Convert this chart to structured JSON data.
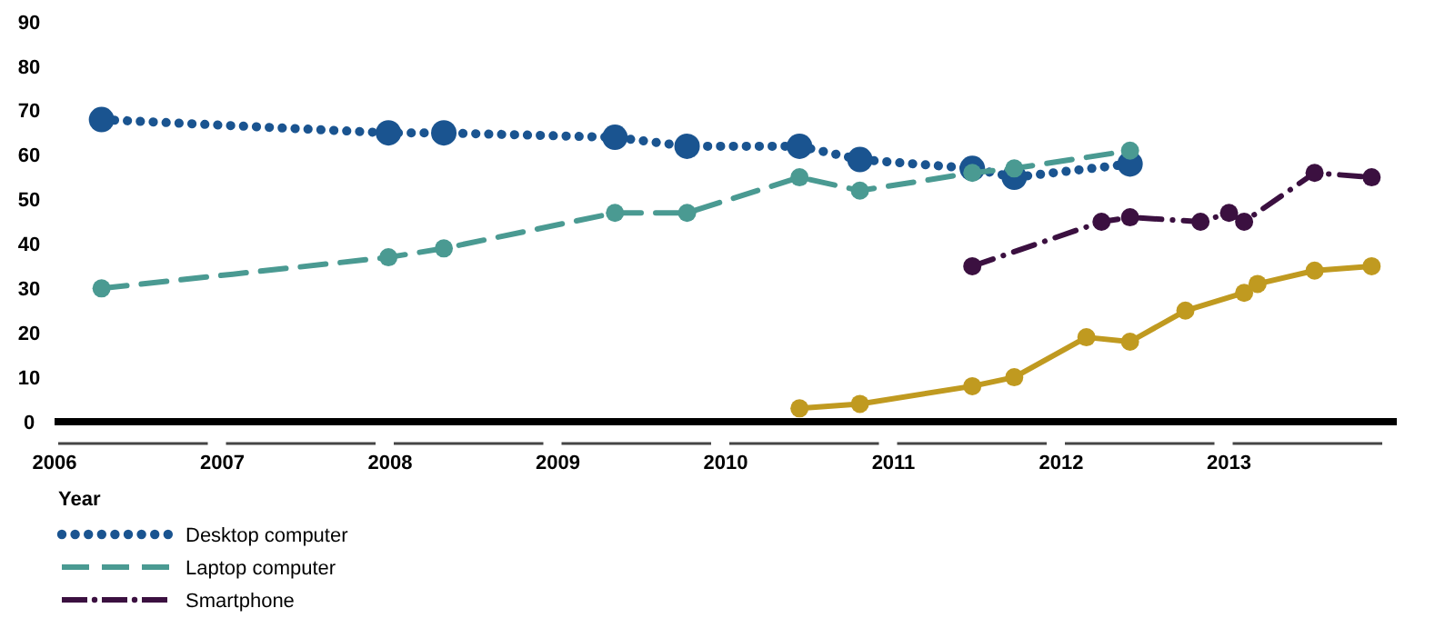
{
  "chart_data": {
    "type": "line",
    "xlabel": "Year",
    "xlim": [
      2006,
      2014
    ],
    "xticks": [
      {
        "value": 2006,
        "label": "2006"
      },
      {
        "value": 2007,
        "label": "2007"
      },
      {
        "value": 2008,
        "label": "2008"
      },
      {
        "value": 2009,
        "label": "2009"
      },
      {
        "value": 2010,
        "label": "2010"
      },
      {
        "value": 2011,
        "label": "2011"
      },
      {
        "value": 2012,
        "label": "2012"
      },
      {
        "value": 2013,
        "label": "2013"
      }
    ],
    "ylim": [
      0,
      90
    ],
    "yticks": [
      0,
      10,
      20,
      30,
      40,
      50,
      60,
      70,
      80,
      90
    ],
    "grid": false,
    "legend": "bottom left",
    "marker": "circle",
    "series": [
      {
        "name": "Desktop computer",
        "color": "#1a5490",
        "line_style": "dotted",
        "x": [
          2006.28,
          2007.99,
          2008.32,
          2009.34,
          2009.77,
          2010.44,
          2010.8,
          2011.47,
          2011.72,
          2012.41
        ],
        "values": [
          68,
          65,
          65,
          64,
          62,
          62,
          59,
          57,
          55,
          58
        ]
      },
      {
        "name": "Laptop computer",
        "color": "#4a9a92",
        "line_style": "dashed",
        "x": [
          2006.28,
          2007.99,
          2008.32,
          2009.34,
          2009.77,
          2010.44,
          2010.8,
          2011.47,
          2011.72,
          2012.41
        ],
        "values": [
          30,
          37,
          39,
          47,
          47,
          55,
          52,
          56,
          57,
          61
        ]
      },
      {
        "name": "Smartphone",
        "color": "#3b1040",
        "line_style": "dashdot",
        "x": [
          2011.47,
          2012.24,
          2012.41,
          2012.83,
          2013.0,
          2013.09,
          2013.51,
          2013.85
        ],
        "values": [
          35,
          45,
          46,
          45,
          47,
          45,
          56,
          55
        ]
      },
      {
        "color": "#c09a20",
        "line_style": "solid",
        "x": [
          2010.44,
          2010.8,
          2011.47,
          2011.72,
          2012.15,
          2012.41,
          2012.74,
          2013.09,
          2013.17,
          2013.51,
          2013.85
        ],
        "values": [
          3,
          4,
          8,
          10,
          19,
          18,
          25,
          29,
          31,
          34,
          35
        ]
      }
    ]
  }
}
